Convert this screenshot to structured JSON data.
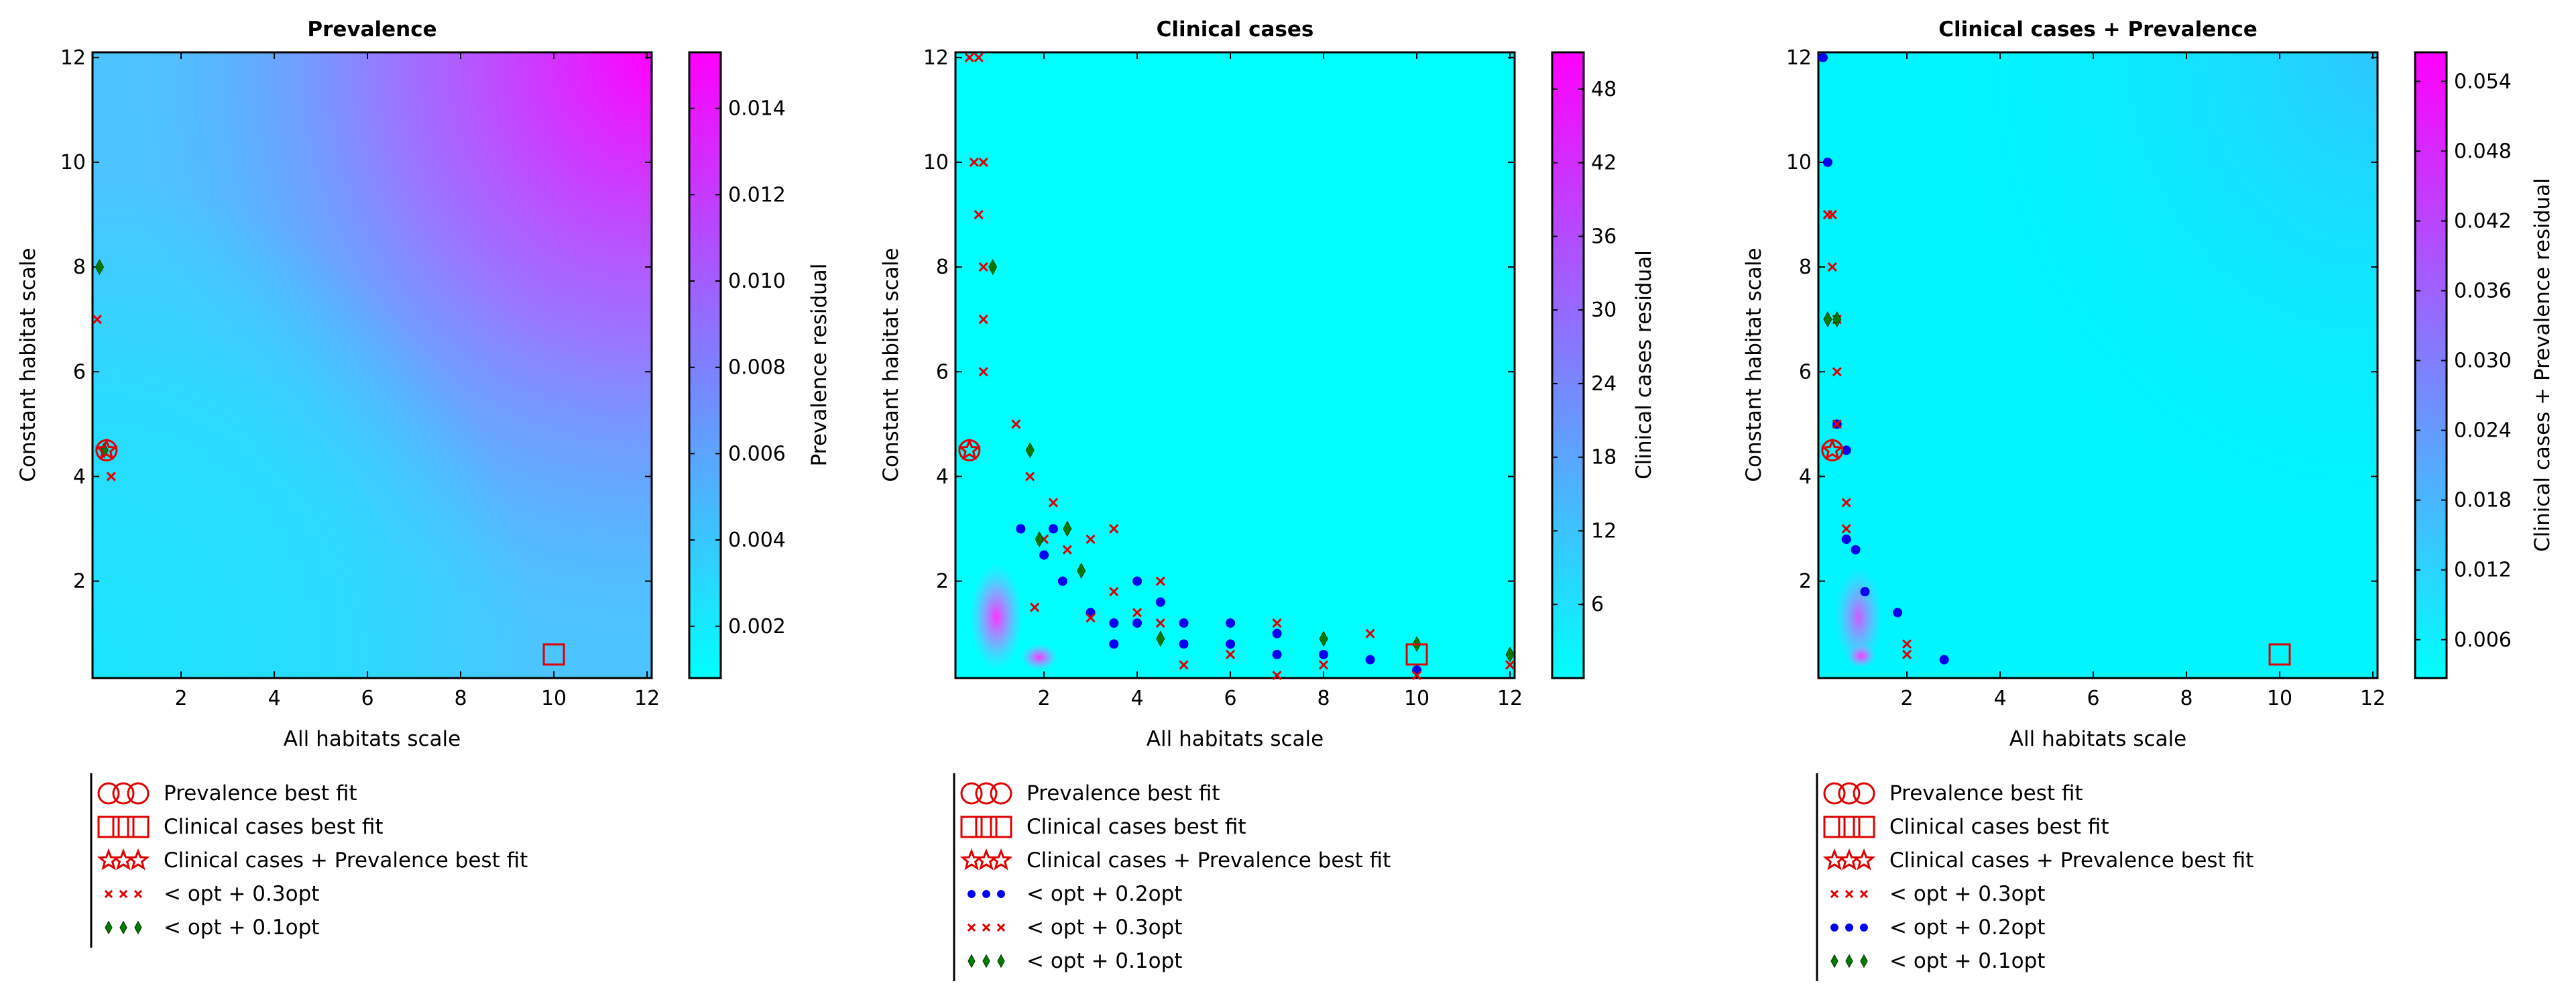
{
  "chart_data": [
    {
      "type": "heatmap",
      "title": "Prevalence",
      "xlabel": "All habitats scale",
      "ylabel": "Constant habitat scale",
      "xlim": [
        0.1,
        12.1
      ],
      "ylim": [
        0.15,
        12.1
      ],
      "xticks": [
        "2",
        "4",
        "6",
        "8",
        "10",
        "12"
      ],
      "yticks": [
        "2",
        "4",
        "6",
        "8",
        "10",
        "12"
      ],
      "colorbar": {
        "label": "Prevalence residual",
        "range": [
          0.0008,
          0.0153
        ],
        "ticks": [
          "0.002",
          "0.004",
          "0.006",
          "0.008",
          "0.010",
          "0.012",
          "0.014"
        ],
        "tick_values": [
          0.002,
          0.004,
          0.006,
          0.008,
          0.01,
          0.012,
          0.014
        ],
        "colormap": [
          "#00ffff",
          "#ff00ff"
        ]
      },
      "best_fits": {
        "prevalence_circle": [
          0.4,
          4.5
        ],
        "clinical_square": [
          10,
          0.6
        ],
        "combined_star": [
          0.4,
          4.5
        ]
      },
      "markers": {
        "x_03opt": [
          [
            0.2,
            7
          ],
          [
            0.5,
            4
          ]
        ],
        "diamond_01opt": [
          [
            0.25,
            8
          ],
          [
            0.35,
            4.5
          ]
        ]
      },
      "legend": [
        {
          "marker": "circle",
          "label": "Prevalence best fit"
        },
        {
          "marker": "square",
          "label": "Clinical cases best fit"
        },
        {
          "marker": "star",
          "label": "Clinical cases + Prevalence best fit"
        },
        {
          "marker": "x",
          "label": "< opt + 0.3opt"
        },
        {
          "marker": "diamond",
          "label": "< opt + 0.1opt"
        }
      ]
    },
    {
      "type": "heatmap",
      "title": "Clinical cases",
      "xlabel": "All habitats scale",
      "ylabel": "Constant habitat scale",
      "xlim": [
        0.1,
        12.1
      ],
      "ylim": [
        0.15,
        12.1
      ],
      "xticks": [
        "2",
        "4",
        "6",
        "8",
        "10",
        "12"
      ],
      "yticks": [
        "2",
        "4",
        "6",
        "8",
        "10",
        "12"
      ],
      "colorbar": {
        "label": "Clinical cases residual",
        "range": [
          0,
          51
        ],
        "ticks": [
          "6",
          "12",
          "18",
          "24",
          "30",
          "36",
          "42",
          "48"
        ],
        "tick_values": [
          6,
          12,
          18,
          24,
          30,
          36,
          42,
          48
        ],
        "colormap": [
          "#00ffff",
          "#ff00ff"
        ]
      },
      "best_fits": {
        "prevalence_circle": [
          0.4,
          4.5
        ],
        "clinical_square": [
          10,
          0.6
        ],
        "combined_star": [
          0.4,
          4.5
        ]
      },
      "markers": {
        "dot_02opt": [
          [
            1.5,
            3
          ],
          [
            2,
            2.5
          ],
          [
            2.2,
            3
          ],
          [
            2.4,
            2
          ],
          [
            3,
            1.4
          ],
          [
            3.5,
            1.2
          ],
          [
            3.5,
            0.8
          ],
          [
            4,
            1.2
          ],
          [
            4,
            2
          ],
          [
            4.5,
            1.6
          ],
          [
            5,
            1.2
          ],
          [
            5,
            0.8
          ],
          [
            6,
            1.2
          ],
          [
            6,
            0.8
          ],
          [
            7,
            1
          ],
          [
            7,
            0.6
          ],
          [
            8,
            0.6
          ],
          [
            9,
            0.5
          ],
          [
            10,
            0.3
          ]
        ],
        "x_03opt": [
          [
            0.4,
            12
          ],
          [
            0.6,
            12
          ],
          [
            0.5,
            10
          ],
          [
            0.7,
            10
          ],
          [
            0.6,
            9
          ],
          [
            0.7,
            8
          ],
          [
            0.7,
            7
          ],
          [
            0.7,
            6
          ],
          [
            1.4,
            5
          ],
          [
            1.7,
            4
          ],
          [
            1.8,
            1.5
          ],
          [
            2,
            2.8
          ],
          [
            2.2,
            3.5
          ],
          [
            2.5,
            2.6
          ],
          [
            3,
            2.8
          ],
          [
            3,
            1.3
          ],
          [
            3.5,
            3
          ],
          [
            3.5,
            1.8
          ],
          [
            4,
            1.4
          ],
          [
            4.5,
            2
          ],
          [
            4.5,
            1.2
          ],
          [
            5,
            0.4
          ],
          [
            6,
            0.6
          ],
          [
            7,
            1.2
          ],
          [
            7,
            0.2
          ],
          [
            8,
            0.4
          ],
          [
            9,
            1
          ],
          [
            10,
            0.2
          ],
          [
            12,
            0.4
          ]
        ],
        "diamond_01opt": [
          [
            0.9,
            8
          ],
          [
            1.7,
            4.5
          ],
          [
            1.9,
            2.8
          ],
          [
            2.5,
            3
          ],
          [
            2.8,
            2.2
          ],
          [
            4.5,
            0.9
          ],
          [
            8,
            0.9
          ],
          [
            10,
            0.8
          ],
          [
            12,
            0.6
          ]
        ]
      },
      "legend": [
        {
          "marker": "circle",
          "label": "Prevalence best fit"
        },
        {
          "marker": "square",
          "label": "Clinical cases best fit"
        },
        {
          "marker": "star",
          "label": "Clinical cases + Prevalence best fit"
        },
        {
          "marker": "dot",
          "label": "< opt + 0.2opt"
        },
        {
          "marker": "x",
          "label": "< opt + 0.3opt"
        },
        {
          "marker": "diamond",
          "label": "< opt + 0.1opt"
        }
      ]
    },
    {
      "type": "heatmap",
      "title": "Clinical cases + Prevalence",
      "xlabel": "All habitats scale",
      "ylabel": "Constant habitat scale",
      "xlim": [
        0.1,
        12.1
      ],
      "ylim": [
        0.15,
        12.1
      ],
      "xticks": [
        "2",
        "4",
        "6",
        "8",
        "10",
        "12"
      ],
      "yticks": [
        "2",
        "4",
        "6",
        "8",
        "10",
        "12"
      ],
      "colorbar": {
        "label": "Clinical cases + Prevalence residual",
        "range": [
          0.0027,
          0.0565
        ],
        "ticks": [
          "0.006",
          "0.012",
          "0.018",
          "0.024",
          "0.030",
          "0.036",
          "0.042",
          "0.048",
          "0.054"
        ],
        "tick_values": [
          0.006,
          0.012,
          0.018,
          0.024,
          0.03,
          0.036,
          0.042,
          0.048,
          0.054
        ],
        "colormap": [
          "#00ffff",
          "#ff00ff"
        ]
      },
      "best_fits": {
        "prevalence_circle": [
          0.4,
          4.5
        ],
        "clinical_square": [
          10,
          0.6
        ],
        "combined_star": [
          0.4,
          4.5
        ]
      },
      "markers": {
        "x_03opt": [
          [
            0.3,
            9
          ],
          [
            0.4,
            9
          ],
          [
            0.4,
            8
          ],
          [
            0.5,
            7
          ],
          [
            0.5,
            6
          ],
          [
            0.5,
            5
          ],
          [
            0.7,
            3.5
          ],
          [
            0.7,
            3
          ],
          [
            2,
            0.8
          ],
          [
            2,
            0.6
          ]
        ],
        "dot_02opt": [
          [
            0.2,
            12
          ],
          [
            0.3,
            10
          ],
          [
            0.5,
            5
          ],
          [
            0.7,
            4.5
          ],
          [
            0.7,
            2.8
          ],
          [
            0.9,
            2.6
          ],
          [
            1.1,
            1.8
          ],
          [
            1.8,
            1.4
          ],
          [
            2.8,
            0.5
          ]
        ],
        "diamond_01opt": [
          [
            0.3,
            7
          ],
          [
            0.5,
            7
          ]
        ]
      },
      "legend": [
        {
          "marker": "circle",
          "label": "Prevalence best fit"
        },
        {
          "marker": "square",
          "label": "Clinical cases best fit"
        },
        {
          "marker": "star",
          "label": "Clinical cases + Prevalence best fit"
        },
        {
          "marker": "x",
          "label": "< opt + 0.3opt"
        },
        {
          "marker": "dot",
          "label": "< opt + 0.2opt"
        },
        {
          "marker": "diamond",
          "label": "< opt + 0.1opt"
        }
      ]
    }
  ]
}
